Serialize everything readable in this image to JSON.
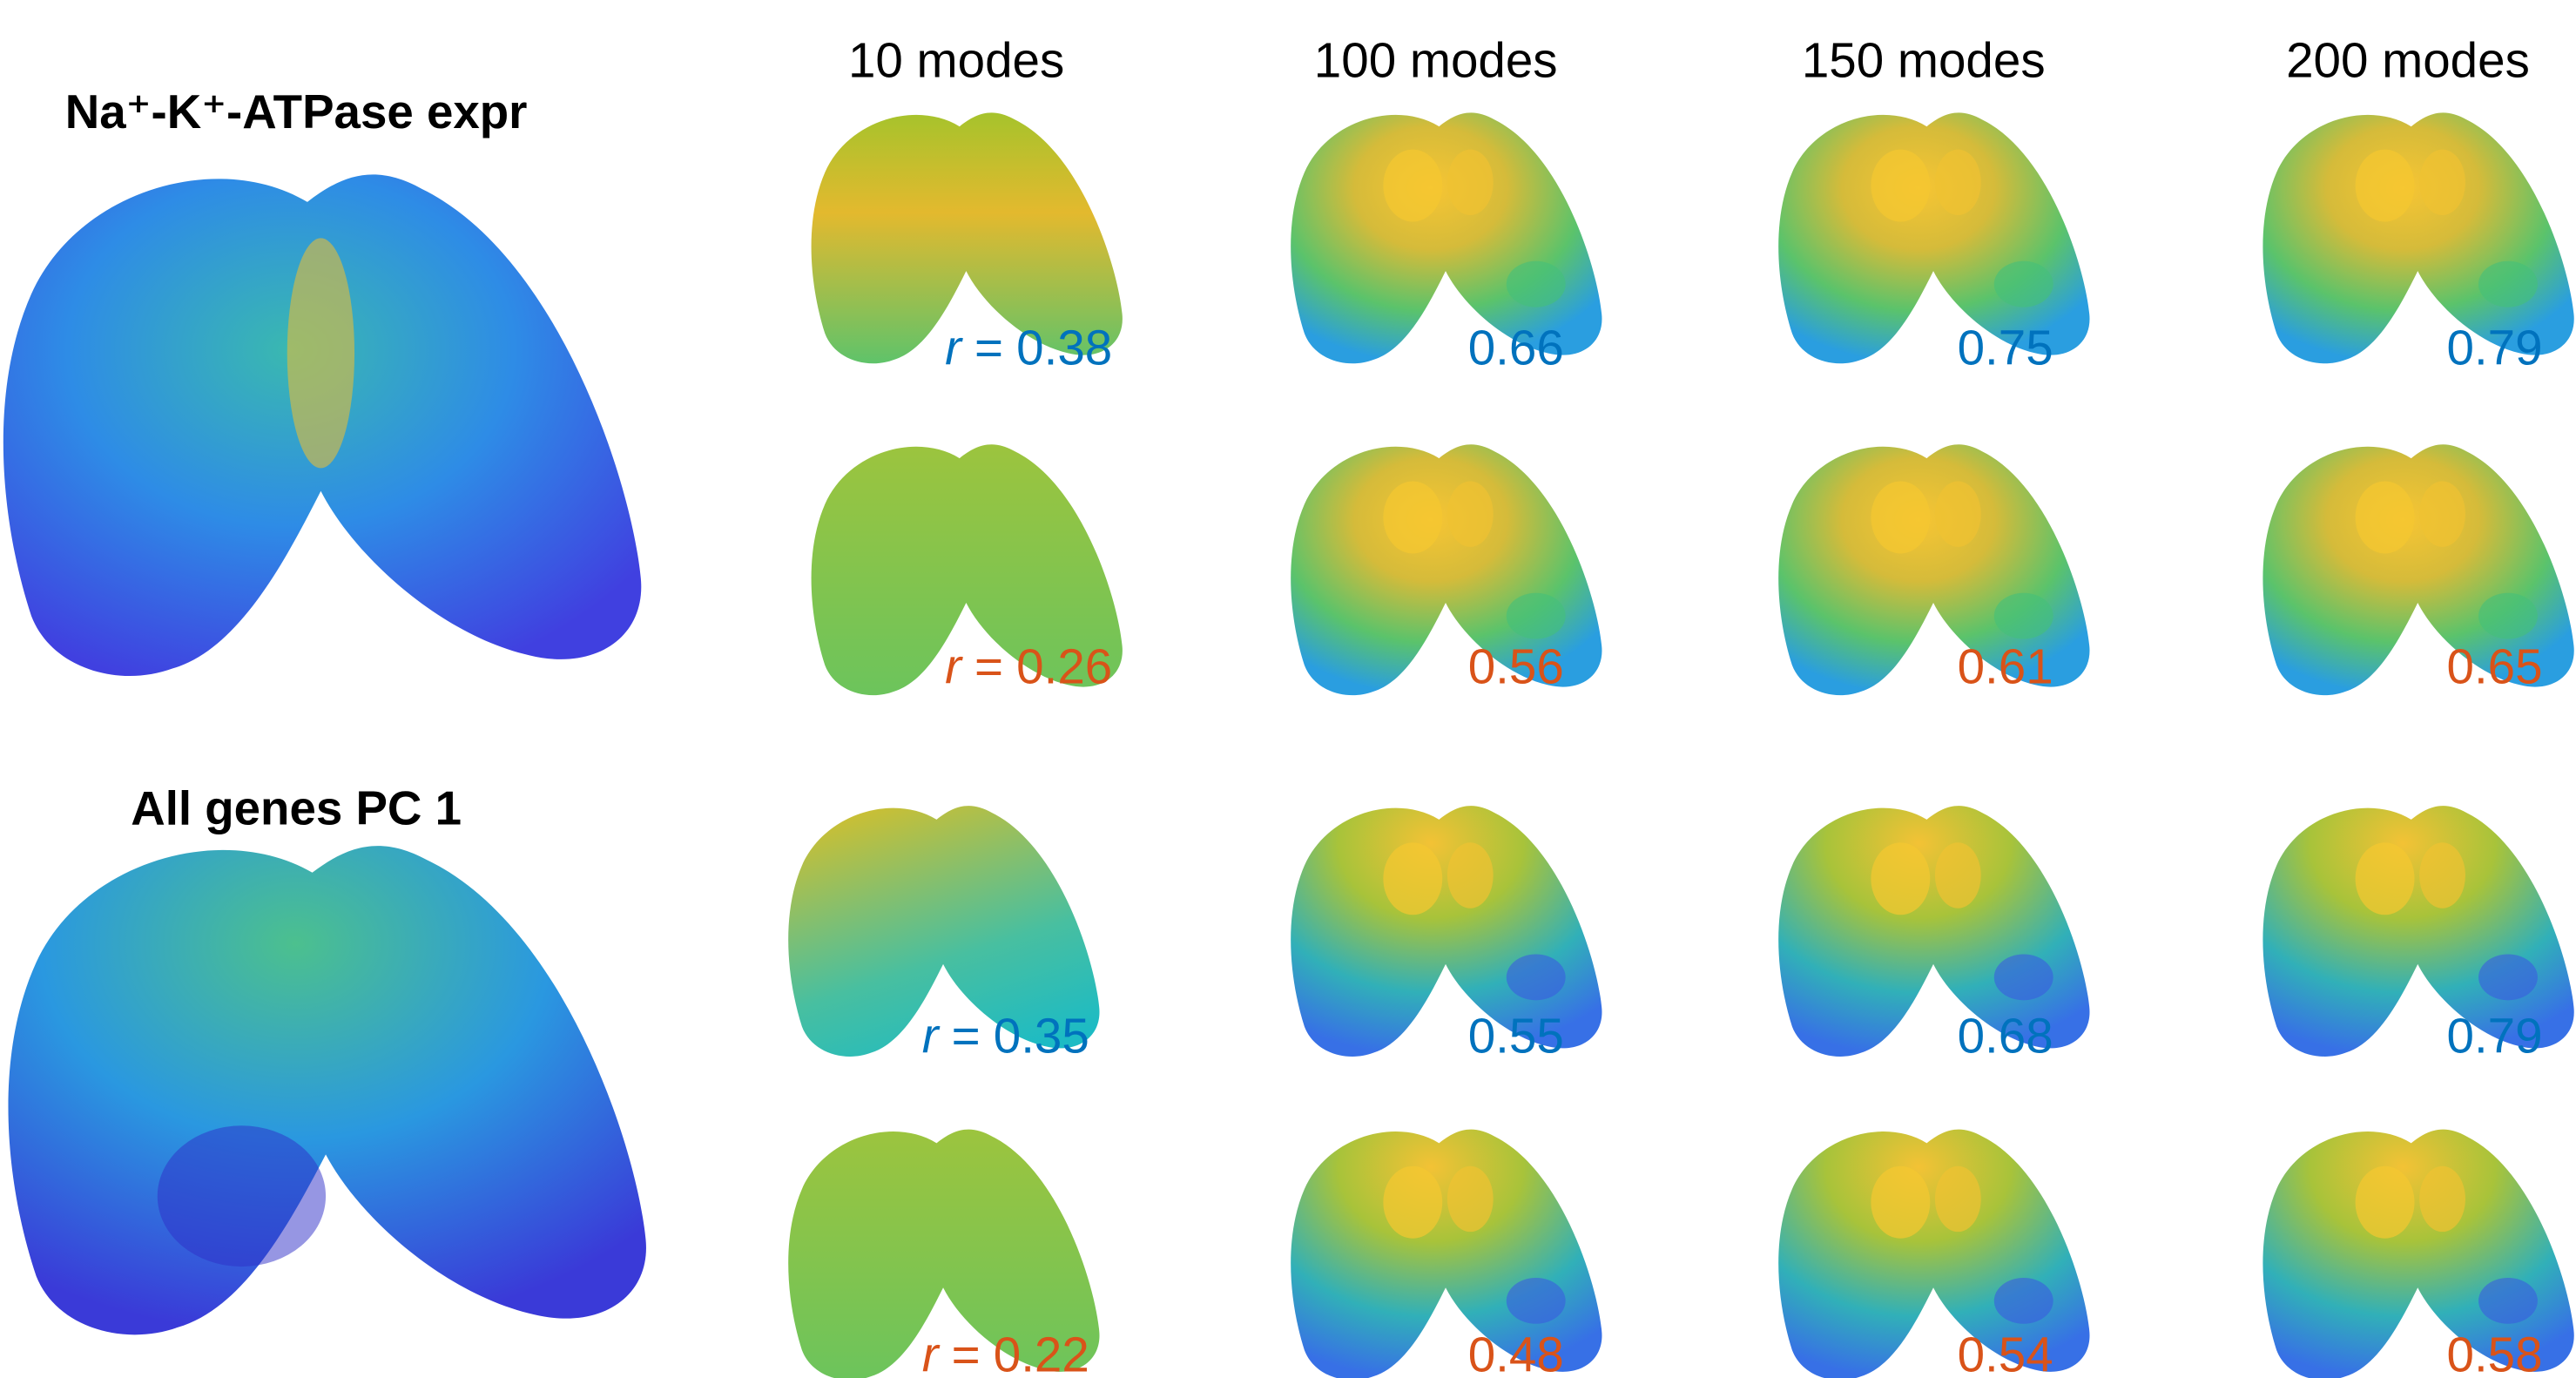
{
  "columns": [
    "10 modes",
    "100 modes",
    "150 modes",
    "200 modes"
  ],
  "panels": [
    {
      "title": "Na⁺-K⁺-ATPase expr",
      "rows": [
        {
          "color": "#0072bd",
          "values": [
            0.38,
            0.66,
            0.75,
            0.79
          ]
        },
        {
          "color": "#d95319",
          "values": [
            0.26,
            0.56,
            0.61,
            0.65
          ]
        }
      ]
    },
    {
      "title": "All genes PC 1",
      "rows": [
        {
          "color": "#0072bd",
          "values": [
            0.35,
            0.55,
            0.68,
            0.79
          ]
        },
        {
          "color": "#d95319",
          "values": [
            0.22,
            0.48,
            0.54,
            0.58
          ]
        }
      ]
    }
  ],
  "stat": {
    "symbol": "r",
    "relation": "="
  }
}
